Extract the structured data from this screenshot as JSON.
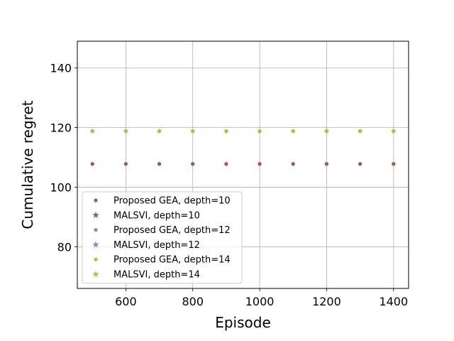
{
  "chart_data": {
    "type": "scatter",
    "xlabel": "Episode",
    "ylabel": "Cumulative regret",
    "xlim": [
      455,
      1445
    ],
    "ylim": [
      66,
      149
    ],
    "xticks": [
      600,
      800,
      1000,
      1200,
      1400
    ],
    "yticks": [
      80,
      100,
      120,
      140
    ],
    "grid": true,
    "legend_position": "lower-left",
    "x": [
      500,
      600,
      700,
      800,
      900,
      1000,
      1100,
      1200,
      1300,
      1400
    ],
    "series": [
      {
        "name": "Proposed GEA, depth=10",
        "marker": "circle",
        "color": "#9b5d45",
        "values": [
          107.8,
          107.8,
          107.8,
          107.8,
          107.8,
          107.8,
          107.8,
          107.8,
          107.8,
          107.8
        ]
      },
      {
        "name": "MALSVI, depth=10",
        "marker": "star",
        "color": "#9b5d45",
        "values": [
          107.8,
          107.8,
          107.8,
          107.8,
          107.8,
          107.8,
          107.8,
          107.8,
          107.8,
          107.8
        ]
      },
      {
        "name": "Proposed GEA, depth=12",
        "marker": "circle",
        "color": "#8f80d8",
        "values": [
          118.8,
          118.8,
          118.8,
          118.8,
          118.8,
          118.8,
          118.8,
          118.8,
          118.8,
          118.8
        ]
      },
      {
        "name": "MALSVI, depth=12",
        "marker": "star",
        "color": "#8f80d8",
        "values": [
          118.8,
          118.8,
          118.8,
          118.8,
          118.8,
          118.8,
          118.8,
          118.8,
          118.8,
          118.8
        ]
      },
      {
        "name": "Proposed GEA, depth=14",
        "marker": "circle",
        "color": "#9acd32",
        "values": [
          118.8,
          118.8,
          118.8,
          118.8,
          118.8,
          118.8,
          118.8,
          118.8,
          118.8,
          118.8
        ]
      },
      {
        "name": "MALSVI, depth=14",
        "marker": "star",
        "color": "#9acd32",
        "values": [
          118.8,
          118.8,
          118.8,
          118.8,
          118.8,
          118.8,
          118.8,
          118.8,
          118.8,
          118.8
        ]
      }
    ]
  }
}
